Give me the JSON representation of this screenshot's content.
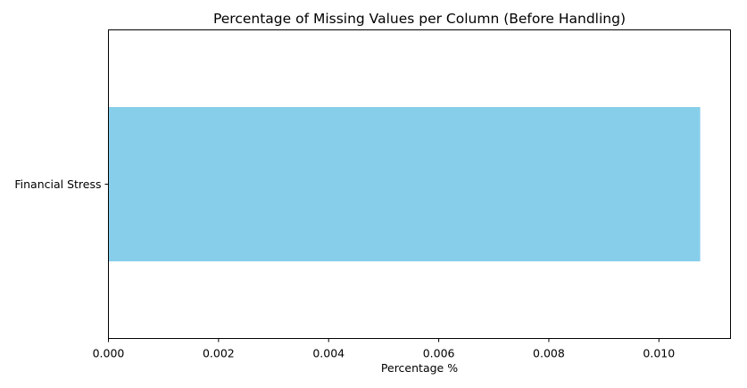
{
  "chart_data": {
    "type": "bar",
    "orientation": "horizontal",
    "title": "Percentage of Missing Values per Column (Before Handling)",
    "xlabel": "Percentage %",
    "ylabel": "",
    "categories": [
      "Financial Stress"
    ],
    "values": [
      0.01075
    ],
    "xlim": [
      0.0,
      0.0113
    ],
    "xticks": [
      0.0,
      0.002,
      0.004,
      0.006,
      0.008,
      0.01
    ],
    "xtick_labels": [
      "0.000",
      "0.002",
      "0.004",
      "0.006",
      "0.008",
      "0.010"
    ],
    "grid": false,
    "legend": "none",
    "colors": {
      "bar": "#87ceeb",
      "axis": "#000000",
      "text": "#000000"
    }
  }
}
